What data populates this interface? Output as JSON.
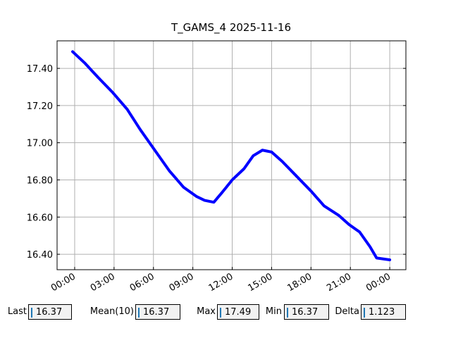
{
  "chart_data": {
    "type": "line",
    "title": "T_GAMS_4 2025-11-16",
    "x": [
      -0.16,
      0.75,
      1.8,
      2.9,
      4.0,
      5.0,
      6.1,
      7.2,
      8.3,
      9.3,
      9.9,
      10.6,
      11.2,
      12.0,
      12.9,
      13.6,
      14.3,
      15.0,
      15.8,
      16.9,
      18.0,
      19.0,
      20.1,
      20.9,
      21.7,
      22.5,
      23.0,
      24.0
    ],
    "series": [
      {
        "name": "T_GAMS_4",
        "color": "#0000ff",
        "values": [
          17.49,
          17.43,
          17.35,
          17.27,
          17.18,
          17.07,
          16.96,
          16.85,
          16.76,
          16.71,
          16.69,
          16.68,
          16.73,
          16.8,
          16.86,
          16.93,
          16.96,
          16.95,
          16.9,
          16.82,
          16.74,
          16.66,
          16.61,
          16.56,
          16.52,
          16.44,
          16.38,
          16.37
        ]
      }
    ],
    "xlim": [
      -1.34,
      25.23
    ],
    "xticks": [
      {
        "value": 0,
        "label": "00:00"
      },
      {
        "value": 3,
        "label": "03:00"
      },
      {
        "value": 6,
        "label": "06:00"
      },
      {
        "value": 9,
        "label": "09:00"
      },
      {
        "value": 12,
        "label": "12:00"
      },
      {
        "value": 15,
        "label": "15:00"
      },
      {
        "value": 18,
        "label": "18:00"
      },
      {
        "value": 21,
        "label": "21:00"
      },
      {
        "value": 24,
        "label": "00:00"
      }
    ],
    "ylim": [
      16.317,
      17.548
    ],
    "yticks": [
      {
        "value": 16.4,
        "label": "16.40"
      },
      {
        "value": 16.6,
        "label": "16.60"
      },
      {
        "value": 16.8,
        "label": "16.80"
      },
      {
        "value": 17.0,
        "label": "17.00"
      },
      {
        "value": 17.2,
        "label": "17.20"
      },
      {
        "value": 17.4,
        "label": "17.40"
      }
    ],
    "grid": true
  },
  "widgets": [
    {
      "label": "Last",
      "value": "16.37"
    },
    {
      "label": "Mean(10)",
      "value": "16.37"
    },
    {
      "label": "Max",
      "value": "17.49"
    },
    {
      "label": "Min",
      "value": "16.37"
    },
    {
      "label": "Delta",
      "value": "1.123"
    }
  ]
}
